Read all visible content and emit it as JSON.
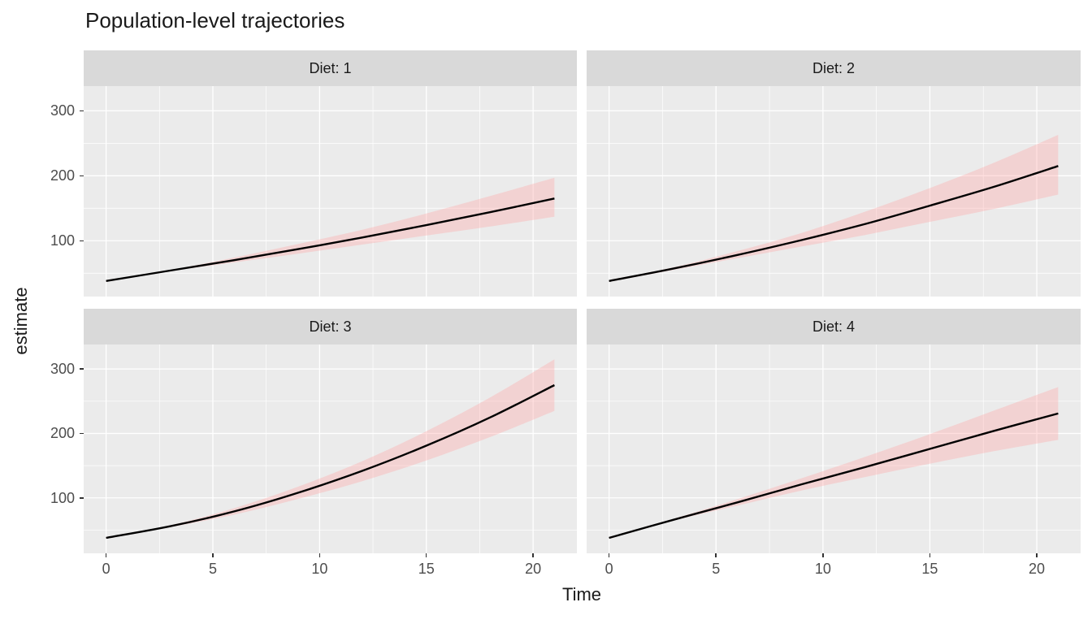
{
  "title": "Population-level trajectories",
  "axis": {
    "x_title": "Time",
    "y_title": "estimate"
  },
  "colors": {
    "panel_bg": "#EBEBEB",
    "strip_bg": "#D9D9D9",
    "grid": "#FFFFFF",
    "line": "#000000",
    "ribbon": "rgba(255,170,170,0.38)",
    "tick_text": "#4D4D4D",
    "title_text": "#1A1A1A",
    "tick_mark": "#333333"
  },
  "chart_data": {
    "type": "line",
    "title": "Population-level trajectories",
    "xlabel": "Time",
    "ylabel": "estimate",
    "legend": false,
    "grid": true,
    "x": [
      0,
      3,
      6,
      9,
      12,
      15,
      18,
      21
    ],
    "x_ticks": [
      0,
      5,
      10,
      15,
      20
    ],
    "y_ticks": [
      100,
      200,
      300
    ],
    "x_minor": [
      2.5,
      7.5,
      12.5,
      17.5
    ],
    "y_minor": [
      50,
      150,
      250
    ],
    "xlim": [
      -1.05,
      22.05
    ],
    "ylim": [
      14,
      338
    ],
    "facets": [
      {
        "label": "Diet: 1",
        "estimate": [
          38,
          54,
          70,
          87,
          105,
          124,
          144,
          165
        ],
        "lower": [
          36.5,
          53,
          66.5,
          80,
          94,
          108,
          122,
          137
        ],
        "upper": [
          39.5,
          55,
          74,
          95,
          117,
          142,
          169,
          197
        ]
      },
      {
        "label": "Diet: 2",
        "estimate": [
          38,
          57,
          78,
          101,
          126,
          154,
          183,
          215
        ],
        "lower": [
          36.5,
          55,
          73,
          91,
          109,
          129,
          149,
          171
        ],
        "upper": [
          39.5,
          59,
          84,
          112,
          145,
          181,
          220,
          263
        ]
      },
      {
        "label": "Diet: 3",
        "estimate": [
          38,
          56,
          79,
          108,
          142,
          181,
          225,
          275
        ],
        "lower": [
          36.5,
          54.5,
          74,
          98.5,
          126,
          158,
          194.5,
          235
        ],
        "upper": [
          39.5,
          57.5,
          84,
          117.5,
          157,
          203.5,
          256,
          315
        ]
      },
      {
        "label": "Diet: 4",
        "estimate": [
          38,
          66,
          93,
          121,
          148,
          176,
          204,
          231
        ],
        "lower": [
          36.5,
          64.5,
          88,
          111.5,
          132.5,
          153,
          172.5,
          190
        ],
        "upper": [
          39.5,
          67.5,
          98,
          130.5,
          164,
          199,
          235.5,
          272
        ]
      }
    ]
  }
}
